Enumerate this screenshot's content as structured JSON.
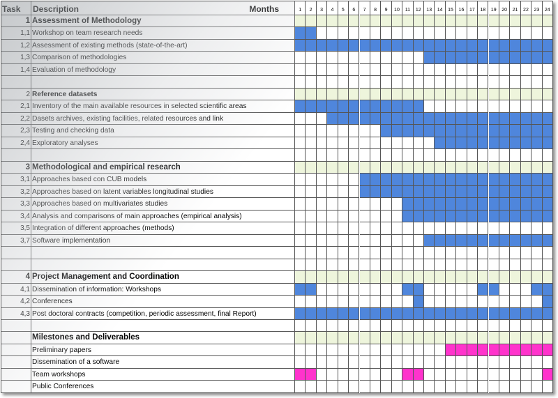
{
  "colors": {
    "active": "#4F86DC",
    "milestone": "#FF33CC",
    "section_band": "#EEF5DC",
    "grid": "#555555"
  },
  "header": {
    "task": "Task",
    "description": "Description",
    "months_label": "Months",
    "months": [
      "1",
      "2",
      "3",
      "4",
      "5",
      "6",
      "7",
      "8",
      "9",
      "10",
      "11",
      "12",
      "13",
      "14",
      "15",
      "16",
      "17",
      "18",
      "19",
      "20",
      "21",
      "22",
      "23",
      "24"
    ]
  },
  "rows": [
    {
      "type": "section",
      "task": "1",
      "desc": "Assessment of Methodology",
      "active": []
    },
    {
      "type": "task",
      "task": "1,1",
      "desc": "Workshop on team research needs",
      "active": [
        1,
        2
      ]
    },
    {
      "type": "task",
      "task": "1,2",
      "desc": "Assessment of existing methods (state-of-the-art)",
      "active": [
        1,
        2,
        3,
        4,
        5,
        6,
        7,
        8,
        9,
        10,
        11,
        12,
        13,
        14,
        15,
        16,
        17,
        18,
        19,
        20,
        21,
        22,
        23,
        24
      ]
    },
    {
      "type": "task",
      "task": "1,3",
      "desc": "Comparison of methodologies",
      "active": [
        13,
        14,
        15,
        16,
        17,
        18,
        19,
        20,
        21,
        22,
        23,
        24
      ]
    },
    {
      "type": "task",
      "task": "1,4",
      "desc": "Evaluation of methodology",
      "active": []
    },
    {
      "type": "blank",
      "task": "",
      "desc": "",
      "active": []
    },
    {
      "type": "subsection",
      "task": "2",
      "desc": "Reference datasets",
      "active": []
    },
    {
      "type": "task",
      "task": "2,1",
      "desc": "Inventory of the main available resources in selected scientific areas",
      "active": [
        1,
        2,
        3,
        4,
        5,
        6,
        7,
        8,
        9,
        10,
        11,
        12
      ]
    },
    {
      "type": "task",
      "task": "2,2",
      "desc": "Dasets archives, existing facilities, related resources and link",
      "active": [
        4,
        5,
        6,
        7,
        8,
        9,
        10,
        11,
        12,
        13,
        14,
        15,
        16,
        17,
        18,
        19,
        20,
        21,
        22,
        23,
        24
      ]
    },
    {
      "type": "task",
      "task": "2,3",
      "desc": "Testing and checking data",
      "active": [
        9,
        10,
        11,
        12,
        13,
        14,
        15,
        16,
        17,
        18,
        19,
        20,
        21,
        22,
        23,
        24
      ]
    },
    {
      "type": "task",
      "task": "2,4",
      "desc": "Exploratory analyses",
      "active": [
        14,
        15,
        16,
        17,
        18,
        19,
        20,
        21,
        22,
        23,
        24
      ]
    },
    {
      "type": "blank",
      "task": "",
      "desc": "",
      "active": []
    },
    {
      "type": "section",
      "task": "3",
      "desc": "Methodological and empirical research",
      "active": []
    },
    {
      "type": "task",
      "task": "3,1",
      "desc": "Approaches based con CUB models",
      "active": [
        7,
        8,
        9,
        10,
        11,
        12,
        13,
        14,
        15,
        16,
        17,
        18,
        19,
        20,
        21,
        22,
        23,
        24
      ]
    },
    {
      "type": "task",
      "task": "3,2",
      "desc": "Approaches based on latent variables longitudinal studies",
      "active": [
        7,
        8,
        9,
        10,
        11,
        12,
        13,
        14,
        15,
        16,
        17,
        18,
        19,
        20,
        21,
        22,
        23,
        24
      ]
    },
    {
      "type": "task",
      "task": "3,3",
      "desc": "Approaches based on multivariates studies",
      "active": [
        11,
        12,
        13,
        14,
        15,
        16,
        17,
        18,
        19,
        20,
        21,
        22,
        23,
        24
      ]
    },
    {
      "type": "task",
      "task": "3,4",
      "desc": "Analysis and comparisons of main approaches (empirical analysis)",
      "active": [
        11,
        12,
        13,
        14,
        15,
        16,
        17,
        18,
        19,
        20,
        21,
        22,
        23,
        24
      ]
    },
    {
      "type": "task",
      "task": "3,5",
      "desc": "Integration of different approaches (methods)",
      "active": []
    },
    {
      "type": "task",
      "task": "3,7",
      "desc": "Software implementation",
      "active": [
        13,
        14,
        15,
        16,
        17,
        18,
        19,
        20,
        21,
        22,
        23,
        24
      ]
    },
    {
      "type": "blank",
      "task": "",
      "desc": "",
      "active": []
    },
    {
      "type": "blank",
      "task": "",
      "desc": "",
      "active": []
    },
    {
      "type": "section",
      "task": "4",
      "desc": "Project Management and Coordination",
      "active": []
    },
    {
      "type": "task",
      "task": "4,1",
      "desc": "Dissemination of information: Workshops",
      "active": [
        1,
        2,
        11,
        12,
        18,
        19,
        23,
        24
      ]
    },
    {
      "type": "task",
      "task": "4,2",
      "desc": "Conferences",
      "active": [
        12,
        24
      ]
    },
    {
      "type": "task",
      "task": "4,3",
      "desc": "Post doctoral contracts (competition, periodic assessment, final Report)",
      "active": [
        1,
        2,
        3,
        4,
        5,
        6,
        7,
        8,
        9,
        10,
        11,
        12,
        13,
        14,
        15,
        16,
        17,
        18,
        19,
        20,
        21,
        22,
        23,
        24
      ]
    },
    {
      "type": "blank",
      "task": "",
      "desc": "",
      "active": []
    },
    {
      "type": "section",
      "task": "",
      "desc": "Milestones and Deliverables",
      "active": []
    },
    {
      "type": "milestone",
      "task": "",
      "desc": "Preliminary papers",
      "active": [
        15,
        16,
        17,
        18,
        19,
        20,
        21,
        22,
        23,
        24
      ]
    },
    {
      "type": "milestone",
      "task": "",
      "desc": "Dissemination of a software",
      "active": []
    },
    {
      "type": "milestone",
      "task": "",
      "desc": "Team workshops",
      "active": [
        1,
        2,
        11,
        12,
        24
      ]
    },
    {
      "type": "milestone",
      "task": "",
      "desc": "Public Conferences",
      "active": []
    }
  ]
}
